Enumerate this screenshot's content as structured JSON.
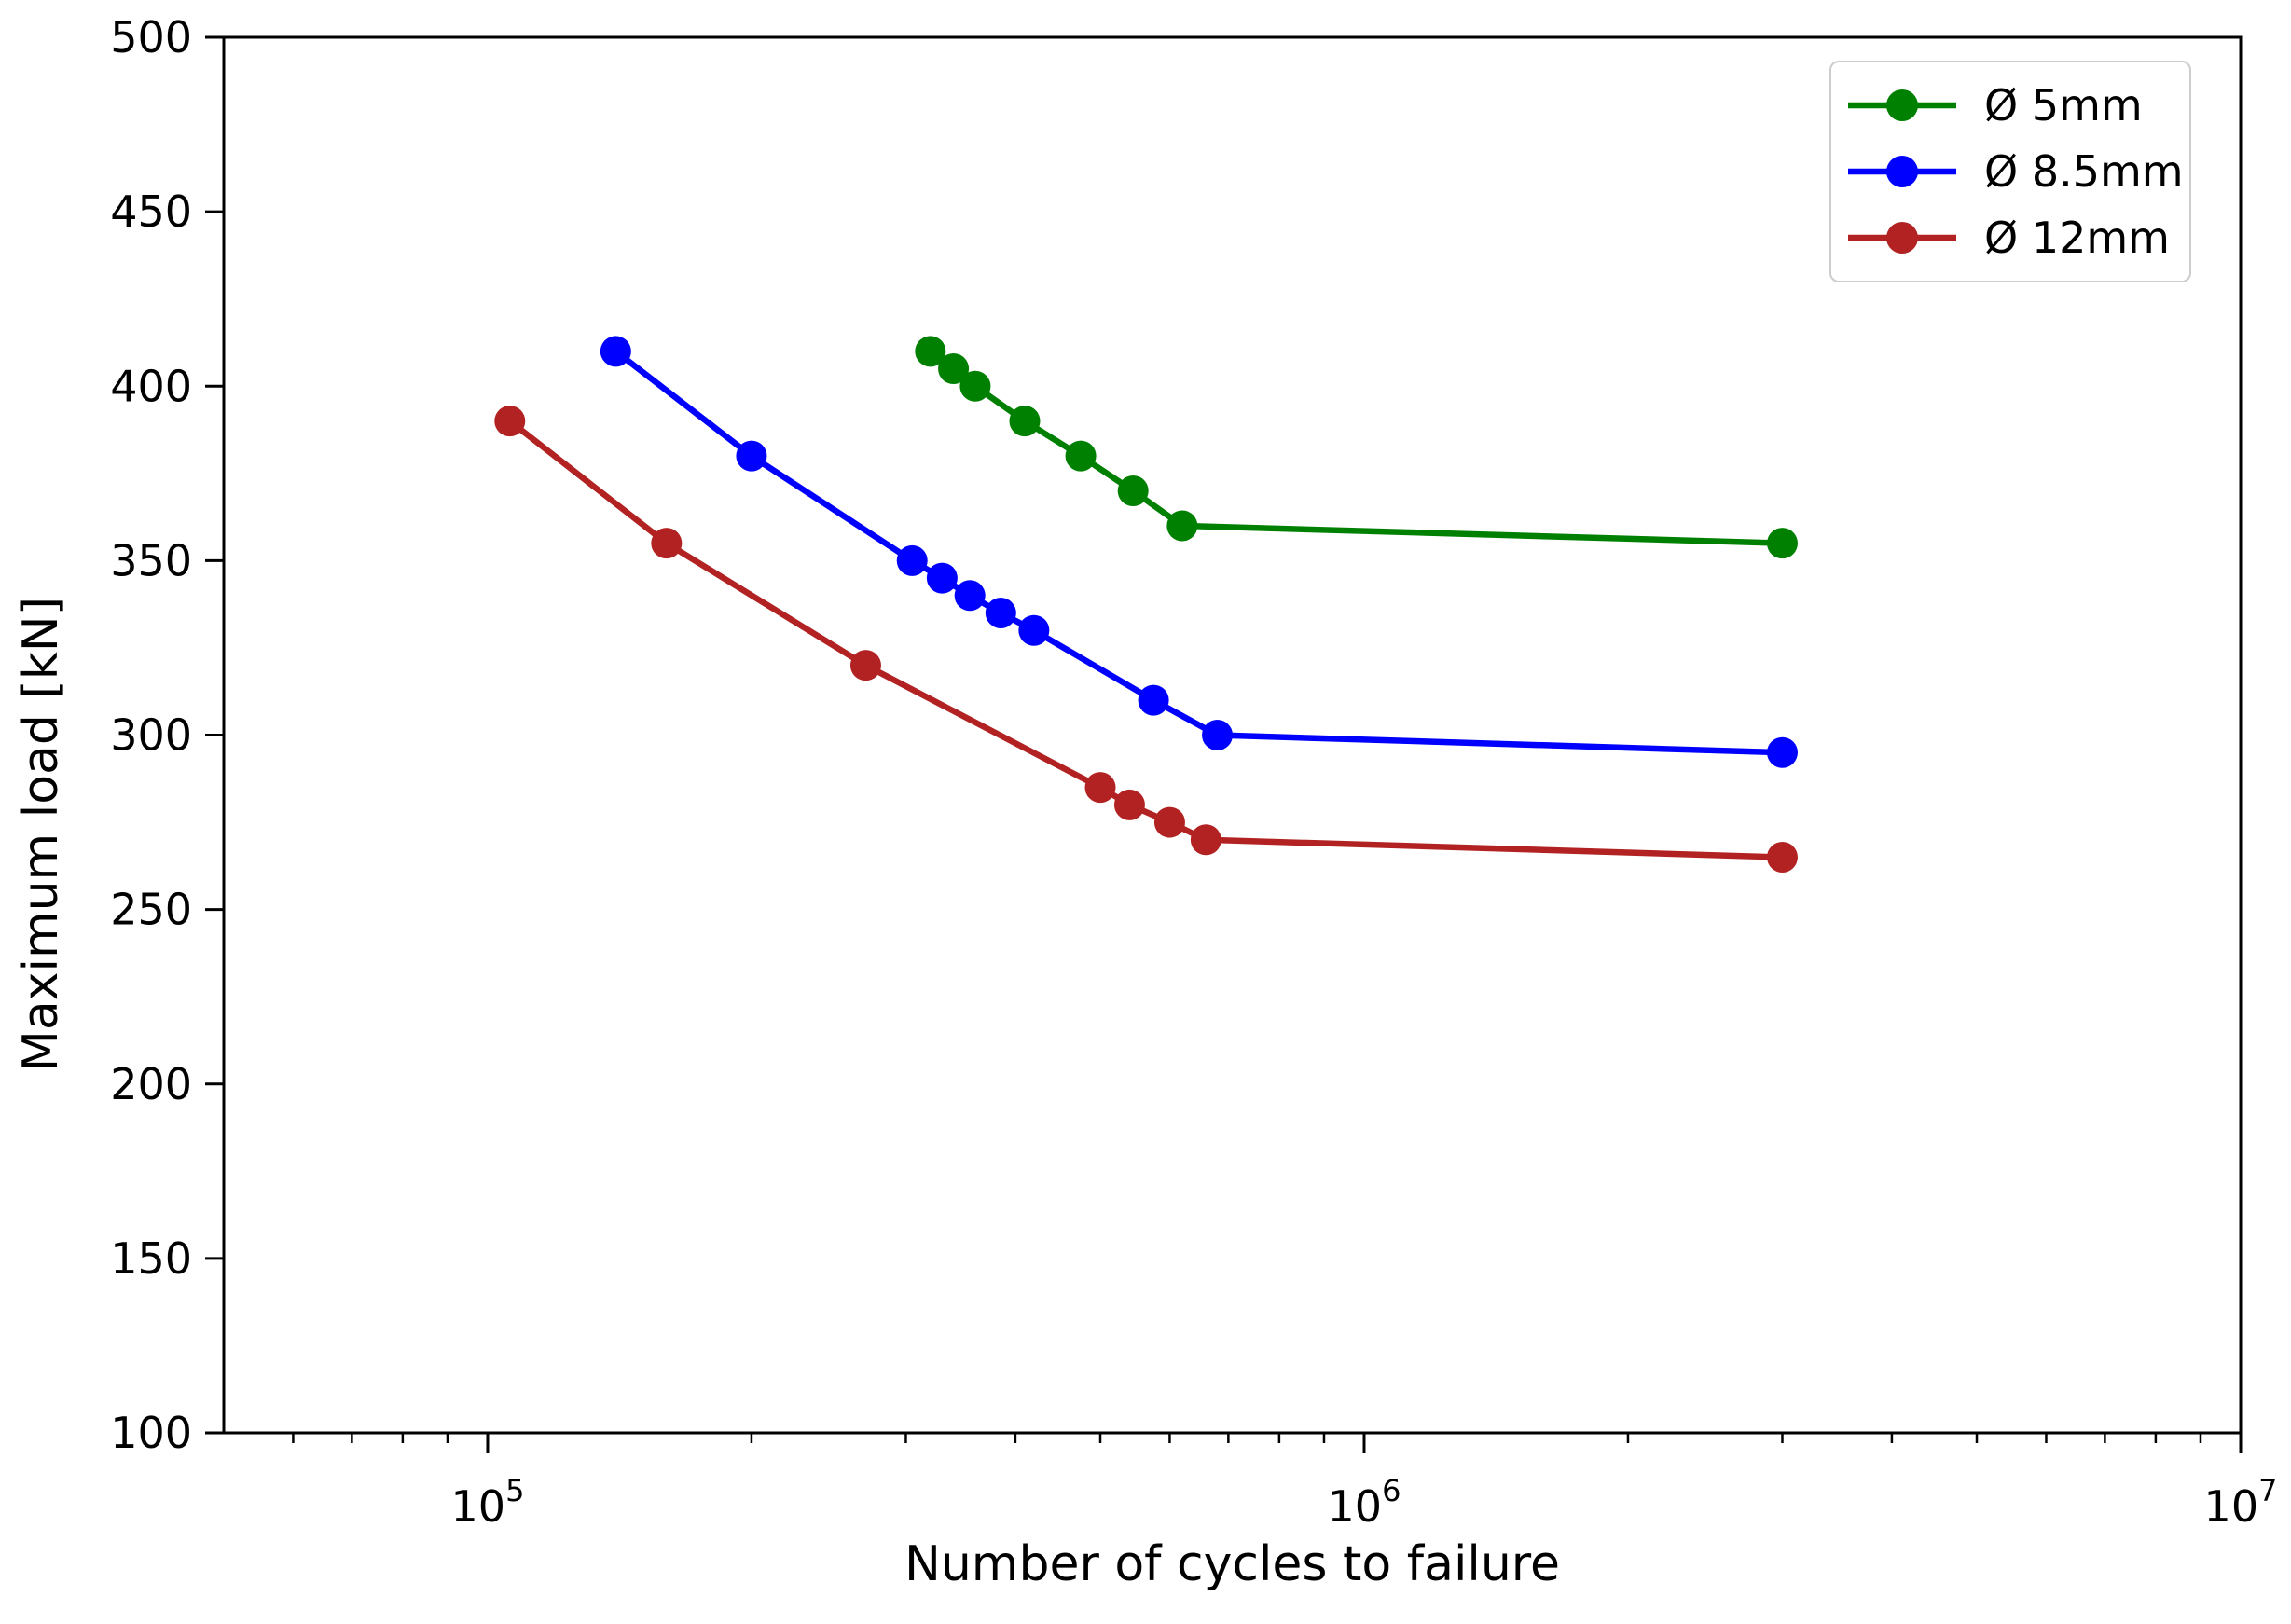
{
  "figure": {
    "background": "#ffffff",
    "xlabel": "Number of cycles to failure",
    "ylabel": "Maximum load [kN]",
    "spine_color": "#000000",
    "tick_color": "#000000"
  },
  "legend": {
    "position": "upper right",
    "items": [
      {
        "label": "Ø 5mm",
        "color": "#008000"
      },
      {
        "label": "Ø 8.5mm",
        "color": "#0000ff"
      },
      {
        "label": "Ø 12mm",
        "color": "#b22222"
      }
    ]
  },
  "chart_data": {
    "type": "line",
    "title": "",
    "xlabel": "Number of cycles to failure",
    "ylabel": "Maximum load [kN]",
    "x_scale": "log",
    "xlim": [
      50000,
      10000000
    ],
    "ylim": [
      100,
      500
    ],
    "grid": false,
    "legend_position": "upper right",
    "y_ticks": [
      100,
      150,
      200,
      250,
      300,
      350,
      400,
      450,
      500
    ],
    "x_major_ticks": [
      {
        "value": 100000,
        "base": "10",
        "exp": "5"
      },
      {
        "value": 1000000,
        "base": "10",
        "exp": "6"
      },
      {
        "value": 10000000,
        "base": "10",
        "exp": "7"
      }
    ],
    "series": [
      {
        "name": "Ø 5mm",
        "color": "#008000",
        "x": [
          320000,
          340000,
          360000,
          410000,
          475000,
          545000,
          620000,
          3000000
        ],
        "y": [
          410,
          405,
          400,
          390,
          380,
          370,
          360,
          355
        ]
      },
      {
        "name": "Ø 8.5mm",
        "color": "#0000ff",
        "x": [
          140000,
          200000,
          305000,
          330000,
          355000,
          385000,
          420000,
          575000,
          680000,
          3000000
        ],
        "y": [
          410,
          380,
          350,
          345,
          340,
          335,
          330,
          310,
          300,
          295
        ]
      },
      {
        "name": "Ø 12mm",
        "color": "#b22222",
        "x": [
          106000,
          160000,
          270000,
          500000,
          540000,
          600000,
          660000,
          3000000
        ],
        "y": [
          390,
          355,
          320,
          285,
          280,
          275,
          270,
          265
        ]
      }
    ]
  }
}
